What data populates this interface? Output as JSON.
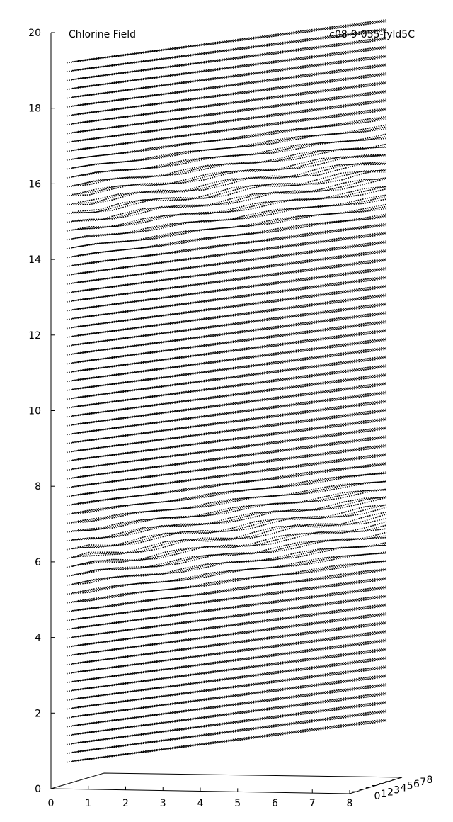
{
  "chart_data": {
    "type": "vector-field-3d",
    "title": "Chlorine Field",
    "id_label": "c08-9-055-fyld5C",
    "x_axis": {
      "ticks": [
        "0",
        "1",
        "2",
        "3",
        "4",
        "5",
        "6",
        "7",
        "8"
      ],
      "range": [
        0,
        8
      ]
    },
    "y_axis": {
      "ticks": [
        "0",
        "1",
        "2",
        "3",
        "4",
        "5",
        "6",
        "7",
        "8"
      ],
      "range": [
        0,
        8
      ]
    },
    "z_axis": {
      "ticks": [
        "0",
        "2",
        "4",
        "6",
        "8",
        "10",
        "12",
        "14",
        "16",
        "18",
        "20"
      ],
      "range": [
        0,
        20
      ]
    },
    "layers_z_range": [
      0.7,
      19.2
    ],
    "layer_count": 80,
    "disturbance_bands_z": [
      6.1,
      15.3
    ],
    "grid": false,
    "legend": "none"
  }
}
